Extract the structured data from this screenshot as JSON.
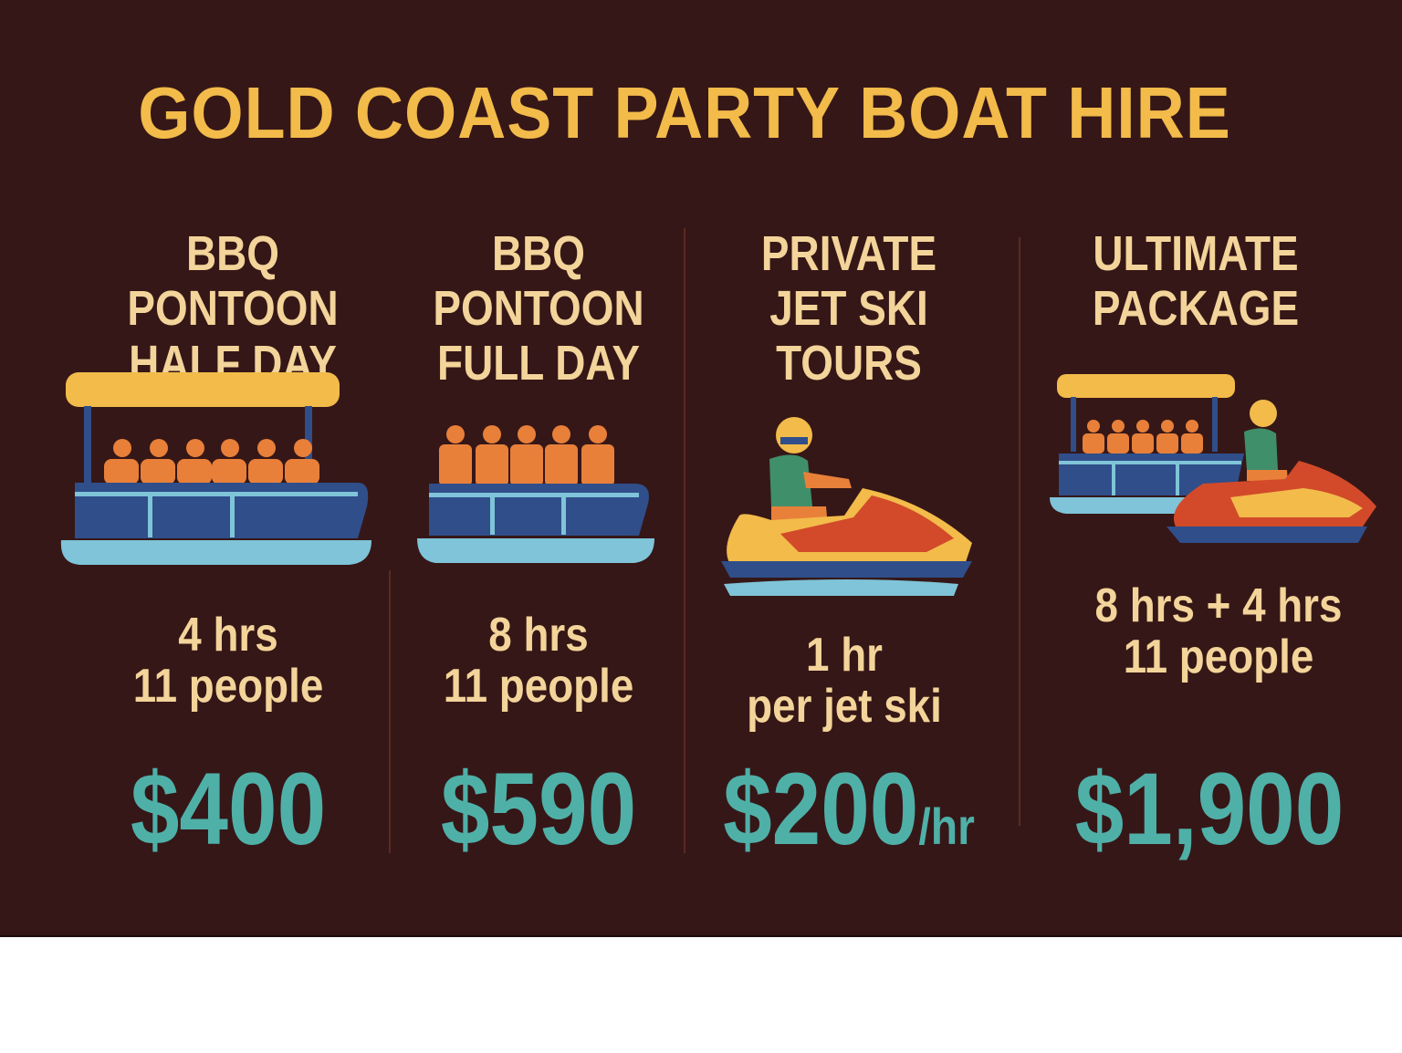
{
  "title": "GOLD COAST PARTY BOAT HIRE",
  "colors": {
    "background": "#361717",
    "title": "#f2bb4a",
    "text": "#f3d49a",
    "price": "#4fb0a8"
  },
  "packages": [
    {
      "name_lines": [
        "BBQ PONTOON",
        "HALF DAY"
      ],
      "icon": "pontoon-boat-icon",
      "detail_lines": [
        "4 hrs",
        "11 people"
      ],
      "price": "$400",
      "unit": ""
    },
    {
      "name_lines": [
        "BBQ",
        "PONTOON",
        "FULL DAY"
      ],
      "icon": "pontoon-boat-icon",
      "detail_lines": [
        "8 hrs",
        "11 people"
      ],
      "price": "$590",
      "unit": ""
    },
    {
      "name_lines": [
        "PRIVATE",
        "JET SKI",
        "TOURS"
      ],
      "icon": "jet-ski-icon",
      "detail_lines": [
        "1 hr",
        "per jet ski"
      ],
      "price": "$200",
      "unit": "/hr"
    },
    {
      "name_lines": [
        "ULTIMATE",
        "PACKAGE"
      ],
      "icon": "pontoon-and-jet-ski-icon",
      "detail_lines": [
        "8 hrs + 4 hrs",
        "11 people"
      ],
      "price": "$1,900",
      "unit": ""
    }
  ]
}
